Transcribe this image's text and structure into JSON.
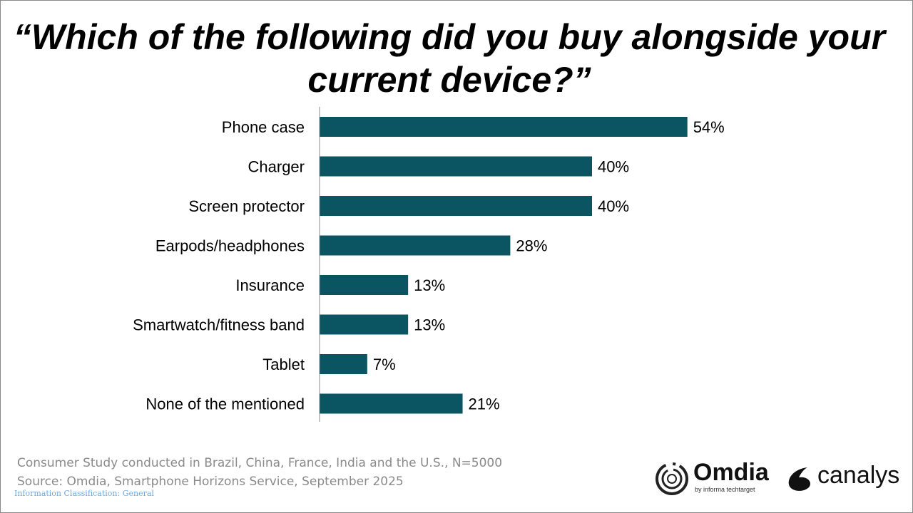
{
  "chart_data": {
    "type": "bar",
    "orientation": "horizontal",
    "title": "“Which of the following did you buy alongside your current device?”",
    "categories": [
      "Phone case",
      "Charger",
      "Screen protector",
      "Earpods/headphones",
      "Insurance",
      "Smartwatch/fitness band",
      "Tablet",
      "None of the mentioned"
    ],
    "values": [
      54,
      40,
      40,
      28,
      13,
      13,
      7,
      21
    ],
    "data_labels": [
      "54%",
      "40%",
      "40%",
      "28%",
      "13%",
      "13%",
      "7%",
      "21%"
    ],
    "unit": "%",
    "xlim": [
      0,
      60
    ],
    "grid": false,
    "legend": "none",
    "bar_color": "#0b5563"
  },
  "title_line1": "“Which of the following did you buy alongside your",
  "title_line2": "current device?”",
  "footer": {
    "note": "Consumer Study conducted in Brazil, China, France, India and the U.S., N=5000",
    "source": "Source: Omdia, Smartphone Horizons Service, September 2025",
    "classification": "Information Classification: General"
  },
  "logos": {
    "omdia": "Omdia",
    "omdia_sub": "by informa techtarget",
    "canalys": "canalys"
  }
}
